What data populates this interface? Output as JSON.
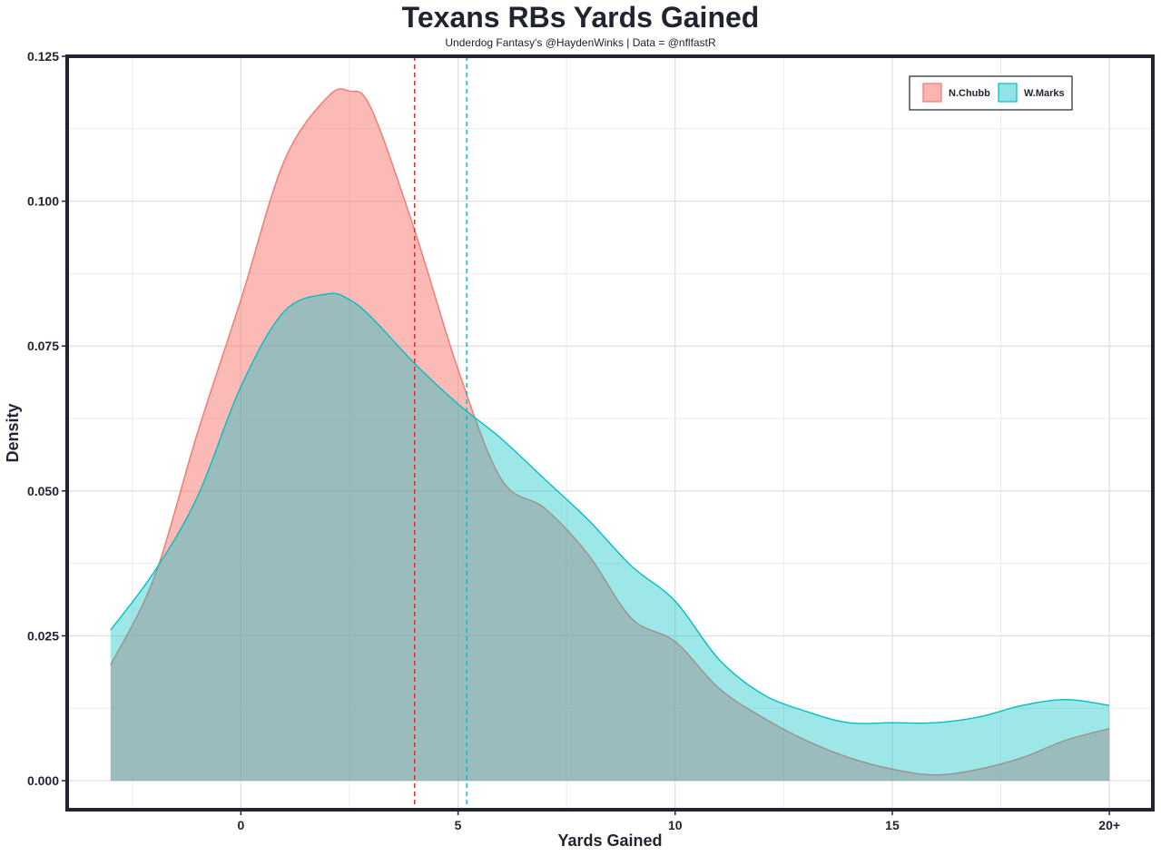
{
  "chart_data": {
    "type": "area",
    "title": "Texans RBs Yards Gained",
    "subtitle": "Underdog Fantasy's @HaydenWinks | Data = @nflfastR",
    "xlabel": "Yards Gained",
    "ylabel": "Density",
    "xlim": [
      -4,
      21
    ],
    "ylim": [
      -0.005,
      0.125
    ],
    "x_ticks": [
      {
        "value": 0,
        "label": "0"
      },
      {
        "value": 5,
        "label": "5"
      },
      {
        "value": 10,
        "label": "10"
      },
      {
        "value": 15,
        "label": "15"
      },
      {
        "value": 20,
        "label": "20+"
      }
    ],
    "y_ticks": [
      {
        "value": 0.0,
        "label": "0.000"
      },
      {
        "value": 0.025,
        "label": "0.025"
      },
      {
        "value": 0.05,
        "label": "0.050"
      },
      {
        "value": 0.075,
        "label": "0.075"
      },
      {
        "value": 0.1,
        "label": "0.100"
      },
      {
        "value": 0.125,
        "label": "0.125"
      }
    ],
    "grid": true,
    "legend_position": "top-right",
    "x": [
      -3,
      -2,
      -1,
      0,
      1,
      2,
      2.5,
      3,
      4,
      5,
      6,
      7,
      8,
      9,
      10,
      11,
      12,
      13,
      14,
      15,
      16,
      17,
      18,
      19,
      20
    ],
    "series": [
      {
        "name": "N.Chubb",
        "color": "#f8766d",
        "fill": "#f8766d",
        "fill_opacity": 0.5,
        "mean": 4.0,
        "values": [
          0.02,
          0.035,
          0.06,
          0.083,
          0.107,
          0.118,
          0.119,
          0.116,
          0.095,
          0.071,
          0.052,
          0.047,
          0.039,
          0.028,
          0.024,
          0.016,
          0.011,
          0.007,
          0.004,
          0.002,
          0.001,
          0.002,
          0.004,
          0.007,
          0.009
        ]
      },
      {
        "name": "W.Marks",
        "color": "#00bfc4",
        "fill": "#00bfc4",
        "fill_opacity": 0.38,
        "mean": 5.2,
        "values": [
          0.026,
          0.036,
          0.049,
          0.068,
          0.081,
          0.084,
          0.083,
          0.08,
          0.072,
          0.065,
          0.059,
          0.052,
          0.045,
          0.037,
          0.031,
          0.021,
          0.015,
          0.012,
          0.01,
          0.01,
          0.01,
          0.011,
          0.013,
          0.014,
          0.013
        ]
      }
    ]
  }
}
